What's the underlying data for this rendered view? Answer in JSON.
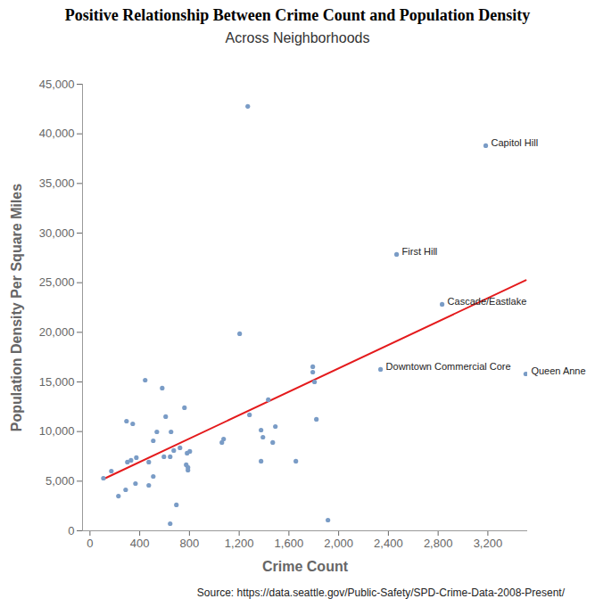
{
  "chart_data": {
    "type": "scatter",
    "title": "Positive Relationship Between Crime Count and Population Density",
    "subtitle": "Across Neighborhoods",
    "x_label": "Crime Count",
    "y_label": "Population Density Per Square Miles",
    "source": "Source: https://data.seattle.gov/Public-Safety/SPD-Crime-Data-2008-Present/",
    "color": "#7a9cc6",
    "x": [
      1269,
      3183,
      2466,
      2832,
      1204,
      2337,
      3505,
      1792,
      1792,
      1806,
      444,
      581,
      1434,
      760,
      1283,
      294,
      609,
      344,
      1821,
      538,
      652,
      1491,
      1376,
      1391,
      509,
      1075,
      1061,
      1470,
      724,
      674,
      803,
      781,
      373,
      330,
      301,
      595,
      645,
      473,
      774,
      788,
      788,
      1376,
      1656,
      172,
      108,
      509,
      366,
      473,
      287,
      229,
      695,
      645,
      1914
    ],
    "y": [
      42770,
      38810,
      27850,
      22820,
      19860,
      16260,
      15810,
      16530,
      15990,
      15000,
      15180,
      14380,
      13210,
      12400,
      11680,
      11050,
      11500,
      10780,
      11230,
      9970,
      9970,
      10510,
      10150,
      9430,
      9070,
      9250,
      8900,
      8900,
      8360,
      8090,
      8000,
      7820,
      7370,
      7100,
      6920,
      7460,
      7460,
      6920,
      6650,
      6380,
      6110,
      7010,
      7010,
      6020,
      5300,
      5480,
      4760,
      4580,
      4130,
      3500,
      2610,
      720,
      1080
    ],
    "labels": [
      null,
      "Capitol Hill",
      "First Hill",
      "Cascade/Eastlake",
      null,
      "Downtown Commercial Core",
      "Queen Anne",
      null,
      null,
      null,
      null,
      null,
      null,
      null,
      null,
      null,
      null,
      null,
      null,
      null,
      null,
      null,
      null,
      null,
      null,
      null,
      null,
      null,
      null,
      null,
      null,
      null,
      null,
      null,
      null,
      null,
      null,
      null,
      null,
      null,
      null,
      null,
      null,
      null,
      null,
      null,
      null,
      null,
      null,
      null,
      null,
      null,
      null
    ],
    "trendline": {
      "x": [
        108,
        3505
      ],
      "y": [
        5210,
        25250
      ],
      "color": "#e41a1c"
    },
    "xlim": [
      -60,
      3520
    ],
    "ylim": [
      0,
      45000
    ],
    "xticks": [
      0,
      400,
      800,
      {
        "value": 1200,
        "label": "1,200"
      },
      {
        "value": 1600,
        "label": "1,600"
      },
      {
        "value": 2000,
        "label": "2,000"
      },
      {
        "value": 2400,
        "label": "2,400"
      },
      {
        "value": 2800,
        "label": "2,800"
      },
      {
        "value": 3200,
        "label": "3,200"
      }
    ],
    "yticks": [
      0,
      {
        "value": 5000,
        "label": "5,000"
      },
      {
        "value": 10000,
        "label": "10,000"
      },
      {
        "value": 15000,
        "label": "15,000"
      },
      {
        "value": 20000,
        "label": "20,000"
      },
      {
        "value": 25000,
        "label": "25,000"
      },
      {
        "value": 30000,
        "label": "30,000"
      },
      {
        "value": 35000,
        "label": "35,000"
      },
      {
        "value": 40000,
        "label": "40,000"
      },
      {
        "value": 45000,
        "label": "45,000"
      }
    ]
  }
}
